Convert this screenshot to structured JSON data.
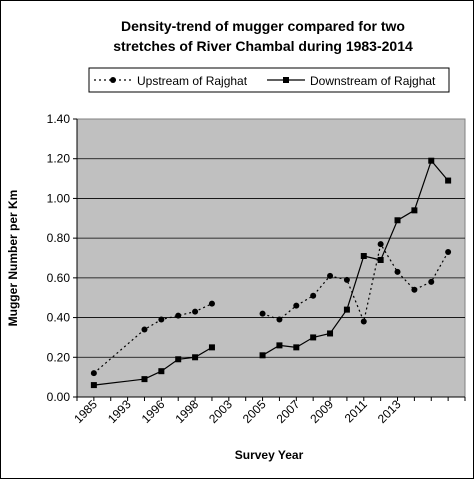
{
  "chart_data": {
    "type": "line",
    "title_lines": [
      "Density-trend of mugger compared for two",
      "stretches of River Chambal during 1983-2014"
    ],
    "xlabel": "Survey Year",
    "ylabel": "Mugger Number per Km",
    "ylim": [
      0,
      1.4
    ],
    "yticks": [
      "0.00",
      "0.20",
      "0.40",
      "0.60",
      "0.80",
      "1.00",
      "1.20",
      "1.40"
    ],
    "xtick_labels": [
      "1985",
      "1993",
      "1996",
      "1998",
      "2003",
      "2005",
      "2007",
      "2009",
      "2011",
      "2013"
    ],
    "grid": "horizontal",
    "legend_position": "top",
    "plot_background": "#c0c0c0",
    "series": [
      {
        "name": "Upstream of Rajghat",
        "style": "dotted",
        "marker": "circle",
        "color": "#000000",
        "points": [
          [
            1,
            0.12
          ],
          [
            4,
            0.34
          ],
          [
            5,
            0.39
          ],
          [
            6,
            0.41
          ],
          [
            7,
            0.43
          ],
          [
            8,
            0.47
          ],
          null,
          [
            11,
            0.42
          ],
          [
            12,
            0.39
          ],
          [
            13,
            0.46
          ],
          [
            14,
            0.51
          ],
          [
            15,
            0.61
          ],
          [
            16,
            0.59
          ],
          [
            17,
            0.38
          ],
          [
            18,
            0.77
          ],
          [
            19,
            0.63
          ],
          [
            20,
            0.54
          ],
          [
            21,
            0.58
          ],
          [
            22,
            0.73
          ]
        ]
      },
      {
        "name": "Downstream of Rajghat",
        "style": "solid",
        "marker": "square",
        "color": "#000000",
        "points": [
          [
            1,
            0.06
          ],
          [
            4,
            0.09
          ],
          [
            5,
            0.13
          ],
          [
            6,
            0.19
          ],
          [
            7,
            0.2
          ],
          [
            8,
            0.25
          ],
          null,
          [
            11,
            0.21
          ],
          [
            12,
            0.26
          ],
          [
            13,
            0.25
          ],
          [
            14,
            0.3
          ],
          [
            15,
            0.32
          ],
          [
            16,
            0.44
          ],
          [
            17,
            0.71
          ],
          [
            18,
            0.69
          ],
          [
            19,
            0.89
          ],
          [
            20,
            0.94
          ],
          [
            21,
            1.19
          ],
          [
            22,
            1.09
          ]
        ]
      }
    ]
  }
}
